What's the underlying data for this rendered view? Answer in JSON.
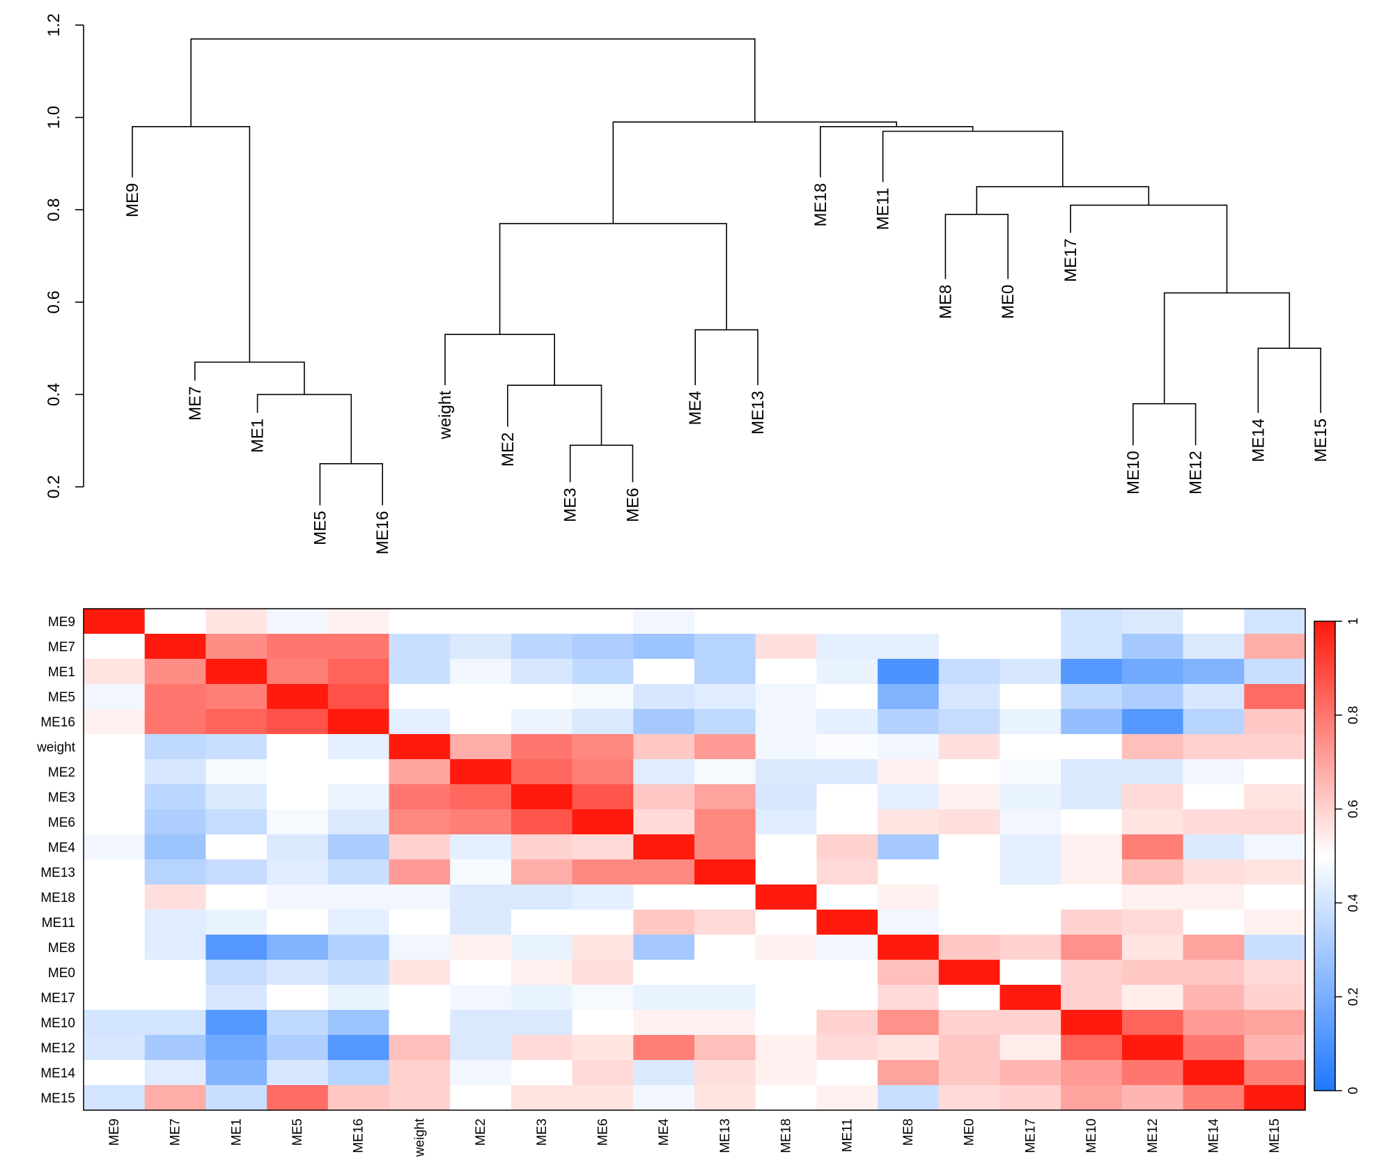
{
  "chart_data": [
    {
      "type": "dendrogram",
      "yaxis": {
        "ylim": [
          0.2,
          1.2
        ],
        "ticks": [
          "0.2",
          "0.4",
          "0.6",
          "0.8",
          "1.0",
          "1.2"
        ]
      },
      "leaves": [
        "ME9",
        "ME7",
        "ME1",
        "ME5",
        "ME16",
        "weight",
        "ME2",
        "ME3",
        "ME6",
        "ME4",
        "ME13",
        "ME18",
        "ME11",
        "ME8",
        "ME0",
        "ME17",
        "ME10",
        "ME12",
        "ME14",
        "ME15"
      ],
      "leaf_heights": [
        0.87,
        0.43,
        0.36,
        0.16,
        0.16,
        0.42,
        0.33,
        0.21,
        0.21,
        0.42,
        0.42,
        0.87,
        0.86,
        0.65,
        0.65,
        0.75,
        0.29,
        0.29,
        0.36,
        0.36
      ],
      "merges": [
        {
          "height": 0.25,
          "children": [
            "ME5",
            "ME16"
          ]
        },
        {
          "height": 0.4,
          "children": [
            "ME1",
            "ME5+ME16"
          ]
        },
        {
          "height": 0.47,
          "children": [
            "ME7",
            "ME1+ME5+ME16"
          ]
        },
        {
          "height": 0.98,
          "children": [
            "ME9",
            "ME7+ME1+ME5+ME16"
          ]
        },
        {
          "height": 0.29,
          "children": [
            "ME3",
            "ME6"
          ]
        },
        {
          "height": 0.42,
          "children": [
            "ME2",
            "ME3+ME6"
          ]
        },
        {
          "height": 0.53,
          "children": [
            "weight",
            "ME2+ME3+ME6"
          ]
        },
        {
          "height": 0.54,
          "children": [
            "ME4",
            "ME13"
          ]
        },
        {
          "height": 0.77,
          "children": [
            "weight+ME2+ME3+ME6",
            "ME4+ME13"
          ]
        },
        {
          "height": 0.79,
          "children": [
            "ME8",
            "ME0"
          ]
        },
        {
          "height": 0.38,
          "children": [
            "ME10",
            "ME12"
          ]
        },
        {
          "height": 0.5,
          "children": [
            "ME14",
            "ME15"
          ]
        },
        {
          "height": 0.62,
          "children": [
            "ME10+ME12",
            "ME14+ME15"
          ]
        },
        {
          "height": 0.81,
          "children": [
            "ME17",
            "ME10+ME12+ME14+ME15"
          ]
        },
        {
          "height": 0.85,
          "children": [
            "ME8+ME0",
            "ME17+ME10+ME12+ME14+ME15"
          ]
        },
        {
          "height": 0.97,
          "children": [
            "ME11",
            "ME8+ME0+ME17+ME10+ME12+ME14+ME15"
          ]
        },
        {
          "height": 0.98,
          "children": [
            "ME18",
            "ME11+ME8+ME0+ME17+ME10+ME12+ME14+ME15"
          ]
        },
        {
          "height": 0.99,
          "children": [
            "weight+ME2+ME3+ME6+ME4+ME13",
            "ME18+ME11+ME8+ME0+ME17+ME10+ME12+ME14+ME15"
          ]
        },
        {
          "height": 1.17,
          "children": [
            "ME9+ME7+ME1+ME5+ME16",
            "weight+ME2+ME3+ME6+ME4+ME13+ME18+ME11+ME8+ME0+ME17+ME10+ME12+ME14+ME15"
          ]
        }
      ]
    },
    {
      "type": "heatmap",
      "rows": [
        "ME9",
        "ME7",
        "ME1",
        "ME5",
        "ME16",
        "weight",
        "ME2",
        "ME3",
        "ME6",
        "ME4",
        "ME13",
        "ME18",
        "ME11",
        "ME8",
        "ME0",
        "ME17",
        "ME10",
        "ME12",
        "ME14",
        "ME15"
      ],
      "columns": [
        "ME9",
        "ME7",
        "ME1",
        "ME5",
        "ME16",
        "weight",
        "ME2",
        "ME3",
        "ME6",
        "ME4",
        "ME13",
        "ME18",
        "ME11",
        "ME8",
        "ME0",
        "ME17",
        "ME10",
        "ME12",
        "ME14",
        "ME15"
      ],
      "values": [
        [
          1.0,
          0.5,
          0.56,
          0.47,
          0.53,
          0.5,
          0.5,
          0.5,
          0.5,
          0.47,
          0.5,
          0.5,
          0.5,
          0.5,
          0.5,
          0.5,
          0.4,
          0.42,
          0.5,
          0.4
        ],
        [
          0.5,
          1.0,
          0.75,
          0.8,
          0.8,
          0.38,
          0.42,
          0.35,
          0.32,
          0.28,
          0.34,
          0.57,
          0.44,
          0.44,
          0.5,
          0.5,
          0.4,
          0.3,
          0.42,
          0.68
        ],
        [
          0.56,
          0.75,
          1.0,
          0.78,
          0.84,
          0.38,
          0.47,
          0.41,
          0.36,
          0.5,
          0.34,
          0.5,
          0.45,
          0.1,
          0.37,
          0.41,
          0.12,
          0.18,
          0.22,
          0.38
        ],
        [
          0.47,
          0.8,
          0.78,
          1.0,
          0.88,
          0.5,
          0.5,
          0.5,
          0.48,
          0.41,
          0.43,
          0.47,
          0.5,
          0.22,
          0.41,
          0.5,
          0.36,
          0.32,
          0.41,
          0.82
        ],
        [
          0.53,
          0.8,
          0.84,
          0.88,
          1.0,
          0.44,
          0.5,
          0.46,
          0.42,
          0.3,
          0.36,
          0.47,
          0.44,
          0.33,
          0.37,
          0.45,
          0.26,
          0.12,
          0.34,
          0.62
        ],
        [
          0.5,
          0.36,
          0.38,
          0.5,
          0.44,
          1.0,
          0.68,
          0.8,
          0.76,
          0.62,
          0.72,
          0.47,
          0.49,
          0.47,
          0.57,
          0.5,
          0.5,
          0.64,
          0.6,
          0.6
        ],
        [
          0.5,
          0.41,
          0.48,
          0.5,
          0.5,
          0.7,
          1.0,
          0.83,
          0.78,
          0.43,
          0.48,
          0.42,
          0.42,
          0.53,
          0.5,
          0.48,
          0.42,
          0.42,
          0.47,
          0.5
        ],
        [
          0.5,
          0.35,
          0.42,
          0.5,
          0.46,
          0.8,
          0.83,
          1.0,
          0.87,
          0.62,
          0.7,
          0.41,
          0.5,
          0.44,
          0.53,
          0.45,
          0.42,
          0.58,
          0.5,
          0.56
        ],
        [
          0.5,
          0.32,
          0.37,
          0.48,
          0.42,
          0.76,
          0.78,
          0.87,
          1.0,
          0.58,
          0.76,
          0.43,
          0.5,
          0.56,
          0.57,
          0.47,
          0.5,
          0.56,
          0.58,
          0.58
        ],
        [
          0.47,
          0.28,
          0.5,
          0.42,
          0.31,
          0.6,
          0.44,
          0.6,
          0.58,
          1.0,
          0.76,
          0.5,
          0.6,
          0.3,
          0.5,
          0.44,
          0.53,
          0.78,
          0.42,
          0.47
        ],
        [
          0.5,
          0.34,
          0.37,
          0.43,
          0.38,
          0.72,
          0.48,
          0.68,
          0.76,
          0.76,
          1.0,
          0.5,
          0.58,
          0.5,
          0.5,
          0.44,
          0.53,
          0.64,
          0.57,
          0.56
        ],
        [
          0.5,
          0.57,
          0.5,
          0.47,
          0.47,
          0.47,
          0.42,
          0.42,
          0.44,
          0.5,
          0.5,
          1.0,
          0.5,
          0.53,
          0.5,
          0.5,
          0.5,
          0.53,
          0.53,
          0.5
        ],
        [
          0.5,
          0.43,
          0.45,
          0.5,
          0.44,
          0.5,
          0.42,
          0.5,
          0.5,
          0.62,
          0.58,
          0.5,
          1.0,
          0.47,
          0.5,
          0.5,
          0.6,
          0.58,
          0.5,
          0.53
        ],
        [
          0.5,
          0.43,
          0.12,
          0.22,
          0.33,
          0.47,
          0.53,
          0.45,
          0.56,
          0.3,
          0.5,
          0.53,
          0.47,
          1.0,
          0.62,
          0.6,
          0.74,
          0.56,
          0.7,
          0.38
        ],
        [
          0.5,
          0.5,
          0.37,
          0.41,
          0.38,
          0.56,
          0.5,
          0.53,
          0.57,
          0.5,
          0.5,
          0.5,
          0.5,
          0.64,
          1.0,
          0.5,
          0.6,
          0.62,
          0.62,
          0.58
        ],
        [
          0.5,
          0.5,
          0.41,
          0.5,
          0.45,
          0.5,
          0.47,
          0.45,
          0.48,
          0.45,
          0.45,
          0.5,
          0.5,
          0.58,
          0.5,
          1.0,
          0.6,
          0.54,
          0.66,
          0.6
        ],
        [
          0.4,
          0.4,
          0.12,
          0.36,
          0.28,
          0.5,
          0.42,
          0.42,
          0.5,
          0.53,
          0.53,
          0.5,
          0.6,
          0.74,
          0.6,
          0.6,
          1.0,
          0.84,
          0.72,
          0.7
        ],
        [
          0.41,
          0.3,
          0.18,
          0.32,
          0.12,
          0.64,
          0.42,
          0.58,
          0.56,
          0.78,
          0.64,
          0.53,
          0.58,
          0.56,
          0.62,
          0.54,
          0.84,
          1.0,
          0.8,
          0.66
        ],
        [
          0.5,
          0.43,
          0.22,
          0.41,
          0.34,
          0.6,
          0.47,
          0.5,
          0.58,
          0.42,
          0.57,
          0.53,
          0.5,
          0.7,
          0.62,
          0.66,
          0.72,
          0.8,
          1.0,
          0.78
        ],
        [
          0.4,
          0.68,
          0.38,
          0.82,
          0.62,
          0.6,
          0.5,
          0.56,
          0.56,
          0.47,
          0.56,
          0.5,
          0.53,
          0.38,
          0.58,
          0.6,
          0.7,
          0.66,
          0.78,
          1.0
        ]
      ],
      "color_scale": {
        "min": 0,
        "max": 1,
        "low_color": "#1f78ff",
        "mid_color": "#ffffff",
        "high_color": "#ff1a0d"
      },
      "colorbar_ticks": [
        "0",
        "0.2",
        "0.4",
        "0.6",
        "0.8",
        "1"
      ]
    }
  ]
}
